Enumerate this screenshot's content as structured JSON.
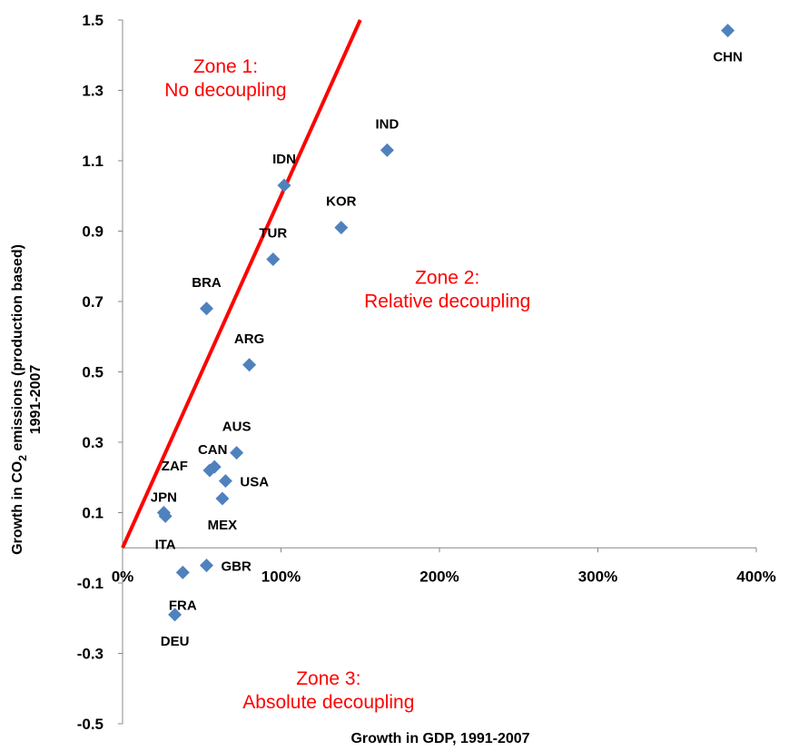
{
  "chart_data": {
    "type": "scatter",
    "xlabel": "Growth in GDP, 1991-2007",
    "ylabel_line1": "Growth in CO",
    "ylabel_sub": "2",
    "ylabel_line1_rest": " emissions (production  based)",
    "ylabel_line2": "1991-2007",
    "xlim": [
      0,
      4.0
    ],
    "ylim": [
      -0.5,
      1.5
    ],
    "x_ticks": [
      {
        "value": 0,
        "label": "0%"
      },
      {
        "value": 1,
        "label": "100%"
      },
      {
        "value": 2,
        "label": "200%"
      },
      {
        "value": 3,
        "label": "300%"
      },
      {
        "value": 4,
        "label": "400%"
      }
    ],
    "y_ticks": [
      {
        "value": 1.5,
        "label": "1.5"
      },
      {
        "value": 1.3,
        "label": "1.3"
      },
      {
        "value": 1.1,
        "label": "1.1"
      },
      {
        "value": 0.9,
        "label": "0.9"
      },
      {
        "value": 0.7,
        "label": "0.7"
      },
      {
        "value": 0.5,
        "label": "0.5"
      },
      {
        "value": 0.3,
        "label": "0.3"
      },
      {
        "value": 0.1,
        "label": "0.1"
      },
      {
        "value": -0.1,
        "label": "-0.1"
      },
      {
        "value": -0.3,
        "label": "-0.3"
      },
      {
        "value": -0.5,
        "label": "-0.5"
      }
    ],
    "marker_color": "#4f81bd",
    "line_color": "#ff0000",
    "zone_color": "#ff0000",
    "decoupling_line": {
      "x": [
        0,
        1.5
      ],
      "y": [
        0,
        1.5
      ]
    },
    "points": [
      {
        "label": "CHN",
        "x": 3.82,
        "y": 1.47,
        "lpos": "below"
      },
      {
        "label": "IND",
        "x": 1.67,
        "y": 1.13,
        "lpos": "above"
      },
      {
        "label": "IDN",
        "x": 1.02,
        "y": 1.03,
        "lpos": "above"
      },
      {
        "label": "KOR",
        "x": 1.38,
        "y": 0.91,
        "lpos": "above"
      },
      {
        "label": "TUR",
        "x": 0.95,
        "y": 0.82,
        "lpos": "above"
      },
      {
        "label": "BRA",
        "x": 0.53,
        "y": 0.68,
        "lpos": "above"
      },
      {
        "label": "ARG",
        "x": 0.8,
        "y": 0.52,
        "lpos": "above"
      },
      {
        "label": "AUS",
        "x": 0.72,
        "y": 0.27,
        "lpos": "above"
      },
      {
        "label": "CAN",
        "x": 0.58,
        "y": 0.23,
        "lpos": "aboveleft"
      },
      {
        "label": "ZAF",
        "x": 0.55,
        "y": 0.22,
        "lpos": "left"
      },
      {
        "label": "USA",
        "x": 0.65,
        "y": 0.19,
        "lpos": "right"
      },
      {
        "label": "MEX",
        "x": 0.63,
        "y": 0.14,
        "lpos": "below"
      },
      {
        "label": "JPN",
        "x": 0.26,
        "y": 0.1,
        "lpos": "aboveright"
      },
      {
        "label": "ITA",
        "x": 0.27,
        "y": 0.09,
        "lpos": "belowfar"
      },
      {
        "label": "GBR",
        "x": 0.53,
        "y": -0.05,
        "lpos": "right"
      },
      {
        "label": "FRA",
        "x": 0.38,
        "y": -0.07,
        "lpos": "belowfar2"
      },
      {
        "label": "DEU",
        "x": 0.33,
        "y": -0.19,
        "lpos": "below"
      }
    ],
    "zones": [
      {
        "line1": "Zone 1:",
        "line2": "No decoupling",
        "x": 0.65,
        "y": 1.32
      },
      {
        "line1": "Zone 2:",
        "line2": "Relative decoupling",
        "x": 2.05,
        "y": 0.72
      },
      {
        "line1": "Zone 3:",
        "line2": "Absolute decoupling",
        "x": 1.3,
        "y": -0.42
      }
    ]
  }
}
